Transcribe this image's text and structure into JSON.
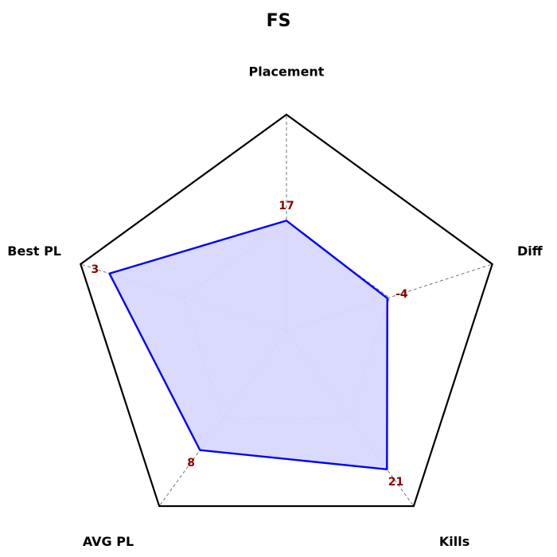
{
  "chart_data": {
    "type": "radar",
    "title": "FS",
    "axes": [
      "Placement",
      "Diff",
      "Kills",
      "AVG PL",
      "Best PL"
    ],
    "values": [
      17,
      -4,
      21,
      8,
      3
    ],
    "normalized": [
      0.51,
      0.49,
      0.79,
      0.68,
      0.86
    ],
    "value_label_color": "#8b0000",
    "series_color": "#0000ff",
    "fill_color": "#d8d8ff",
    "frame_color": "#000000",
    "grid_color": "#777777",
    "grid": true
  }
}
